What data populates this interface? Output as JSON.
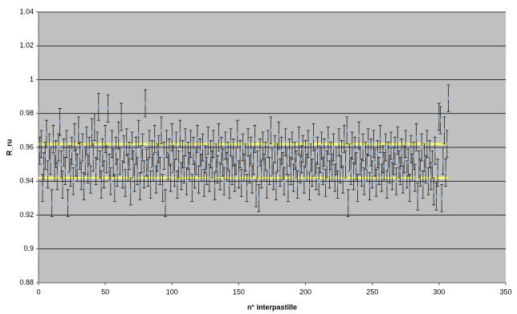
{
  "chart_data": {
    "type": "scatter",
    "x_label": "n° interpastille",
    "y_label": "R_ru",
    "xlim": [
      0,
      350
    ],
    "xticks": [
      0,
      50,
      100,
      150,
      200,
      250,
      300,
      350
    ],
    "ylim": [
      0.88,
      1.04
    ],
    "yticks": [
      0.88,
      0.9,
      0.92,
      0.94,
      0.96,
      0.98,
      1,
      1.02,
      1.04
    ],
    "grid": true,
    "background": "#c0c0c0",
    "reference_lines": [
      {
        "value": 0.962,
        "xlim": [
          0,
          307
        ],
        "color": "#ffff66"
      },
      {
        "value": 0.942,
        "xlim": [
          0,
          307
        ],
        "color": "#ffff66"
      }
    ],
    "series": [
      {
        "color": "#7fa7d6",
        "error_color": "#222222",
        "error": 0.008,
        "x": [
          1,
          2,
          3,
          4,
          5,
          6,
          7,
          8,
          9,
          10,
          11,
          12,
          13,
          14,
          15,
          16,
          17,
          18,
          19,
          20,
          21,
          22,
          23,
          24,
          25,
          26,
          27,
          28,
          29,
          30,
          31,
          32,
          33,
          34,
          35,
          36,
          37,
          38,
          39,
          40,
          41,
          42,
          43,
          44,
          45,
          46,
          47,
          48,
          49,
          50,
          51,
          52,
          53,
          54,
          55,
          56,
          57,
          58,
          59,
          60,
          61,
          62,
          63,
          64,
          65,
          66,
          67,
          68,
          69,
          70,
          71,
          72,
          73,
          74,
          75,
          76,
          77,
          78,
          79,
          80,
          81,
          82,
          83,
          84,
          85,
          86,
          87,
          88,
          89,
          90,
          91,
          92,
          93,
          94,
          95,
          96,
          97,
          98,
          99,
          100,
          101,
          102,
          103,
          104,
          105,
          106,
          107,
          108,
          109,
          110,
          111,
          112,
          113,
          114,
          115,
          116,
          117,
          118,
          119,
          120,
          121,
          122,
          123,
          124,
          125,
          126,
          127,
          128,
          129,
          130,
          131,
          132,
          133,
          134,
          135,
          136,
          137,
          138,
          139,
          140,
          141,
          142,
          143,
          144,
          145,
          146,
          147,
          148,
          149,
          150,
          151,
          152,
          153,
          154,
          155,
          156,
          157,
          158,
          159,
          160,
          161,
          162,
          163,
          164,
          165,
          166,
          167,
          168,
          169,
          170,
          171,
          172,
          173,
          174,
          175,
          176,
          177,
          178,
          179,
          180,
          181,
          182,
          183,
          184,
          185,
          186,
          187,
          188,
          189,
          190,
          191,
          192,
          193,
          194,
          195,
          196,
          197,
          198,
          199,
          200,
          201,
          202,
          203,
          204,
          205,
          206,
          207,
          208,
          209,
          210,
          211,
          212,
          213,
          214,
          215,
          216,
          217,
          218,
          219,
          220,
          221,
          222,
          223,
          224,
          225,
          226,
          227,
          228,
          229,
          230,
          231,
          232,
          233,
          234,
          235,
          236,
          237,
          238,
          239,
          240,
          241,
          242,
          243,
          244,
          245,
          246,
          247,
          248,
          249,
          250,
          251,
          252,
          253,
          254,
          255,
          256,
          257,
          258,
          259,
          260,
          261,
          262,
          263,
          264,
          265,
          266,
          267,
          268,
          269,
          270,
          271,
          272,
          273,
          274,
          275,
          276,
          277,
          278,
          279,
          280,
          281,
          282,
          283,
          284,
          285,
          286,
          287,
          288,
          289,
          290,
          291,
          292,
          293,
          294,
          295,
          296,
          297,
          298,
          299,
          300,
          301,
          302,
          303,
          304,
          305,
          306,
          307
        ],
        "values": [
          0.958,
          0.962,
          0.936,
          0.949,
          0.955,
          0.968,
          0.944,
          0.96,
          0.952,
          0.927,
          0.965,
          0.948,
          0.956,
          0.943,
          0.96,
          0.975,
          0.95,
          0.938,
          0.957,
          0.946,
          0.962,
          0.927,
          0.953,
          0.945,
          0.958,
          0.94,
          0.966,
          0.951,
          0.948,
          0.97,
          0.955,
          0.943,
          0.96,
          0.937,
          0.952,
          0.964,
          0.947,
          0.958,
          0.941,
          0.969,
          0.954,
          0.972,
          0.946,
          0.961,
          0.984,
          0.95,
          0.938,
          0.957,
          0.944,
          0.965,
          0.953,
          0.983,
          0.948,
          0.94,
          0.962,
          0.951,
          0.936,
          0.958,
          0.945,
          0.967,
          0.952,
          0.978,
          0.944,
          0.959,
          0.939,
          0.963,
          0.948,
          0.955,
          0.934,
          0.961,
          0.95,
          0.942,
          0.958,
          0.946,
          0.968,
          0.937,
          0.953,
          0.96,
          0.944,
          0.986,
          0.951,
          0.945,
          0.962,
          0.938,
          0.956,
          0.948,
          0.965,
          0.941,
          0.954,
          0.959,
          0.946,
          0.97,
          0.936,
          0.955,
          0.927,
          0.962,
          0.949,
          0.957,
          0.942,
          0.966,
          0.953,
          0.945,
          0.961,
          0.938,
          0.95,
          0.968,
          0.943,
          0.956,
          0.947,
          0.963,
          0.94,
          0.955,
          0.949,
          0.962,
          0.936,
          0.958,
          0.944,
          0.952,
          0.965,
          0.941,
          0.957,
          0.948,
          0.96,
          0.939,
          0.953,
          0.946,
          0.964,
          0.942,
          0.956,
          0.95,
          0.962,
          0.937,
          0.954,
          0.947,
          0.966,
          0.943,
          0.958,
          0.951,
          0.94,
          0.961,
          0.949,
          0.955,
          0.938,
          0.963,
          0.946,
          0.957,
          0.942,
          0.952,
          0.968,
          0.944,
          0.956,
          0.939,
          0.96,
          0.948,
          0.954,
          0.936,
          0.963,
          0.947,
          0.958,
          0.941,
          0.952,
          0.965,
          0.933,
          0.95,
          0.93,
          0.957,
          0.944,
          0.961,
          0.948,
          0.955,
          0.938,
          0.962,
          0.946,
          0.97,
          0.951,
          0.943,
          0.959,
          0.937,
          0.954,
          0.967,
          0.945,
          0.958,
          0.949,
          0.94,
          0.963,
          0.952,
          0.936,
          0.957,
          0.946,
          0.961,
          0.942,
          0.955,
          0.95,
          0.938,
          0.964,
          0.947,
          0.953,
          0.959,
          0.941,
          0.956,
          0.948,
          0.962,
          0.937,
          0.954,
          0.945,
          0.966,
          0.951,
          0.943,
          0.958,
          0.94,
          0.953,
          0.961,
          0.946,
          0.957,
          0.939,
          0.95,
          0.964,
          0.944,
          0.955,
          0.948,
          0.96,
          0.942,
          0.952,
          0.938,
          0.963,
          0.947,
          0.956,
          0.941,
          0.965,
          0.95,
          0.97,
          0.927,
          0.954,
          0.946,
          0.961,
          0.943,
          0.958,
          0.949,
          0.936,
          0.967,
          0.952,
          0.945,
          0.96,
          0.94,
          0.955,
          0.948,
          0.963,
          0.937,
          0.957,
          0.944,
          0.962,
          0.951,
          0.939,
          0.956,
          0.946,
          0.965,
          0.942,
          0.953,
          0.949,
          0.96,
          0.938,
          0.955,
          0.947,
          0.961,
          0.943,
          0.952,
          0.958,
          0.94,
          0.964,
          0.95,
          0.946,
          0.957,
          0.941,
          0.953,
          0.962,
          0.944,
          0.951,
          0.936,
          0.959,
          0.948,
          0.955,
          0.942,
          0.966,
          0.931,
          0.95,
          0.945,
          0.96,
          0.938,
          0.954,
          0.947,
          0.962,
          0.94,
          0.956,
          0.943,
          0.95,
          0.934,
          0.958,
          0.931,
          0.945,
          0.978,
          0.976,
          0.93,
          0.952,
          0.97,
          0.945,
          0.962,
          0.989
        ]
      }
    ]
  }
}
